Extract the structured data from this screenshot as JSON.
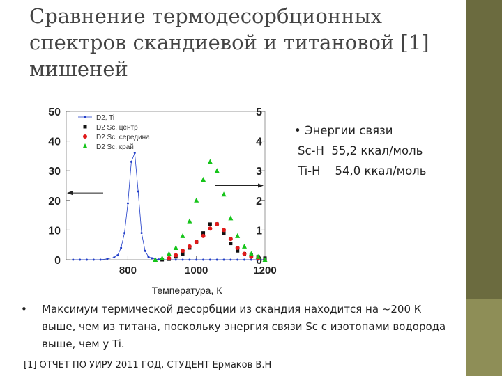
{
  "slide": {
    "title_lines": [
      "Сравнение термодесорбционных",
      "спектров скандиевой и титановой [1]",
      "мишеней"
    ],
    "energy": {
      "heading": "Энергии связи",
      "rows": [
        "Sc-H  55,2 ккал/моль",
        "Ti-H    54,0 ккал/моль"
      ]
    },
    "bullet_text": "Максимум термической десорбции из скандия находится на ~200 К выше, чем из титана, поскольку энергия связи Sc с изотопами водорода выше, чем у Ti.",
    "footnote": "[1] ОТЧЕТ ПО УИРУ 2011 ГОД, СТУДЕНТ Ермаков В.Н",
    "colors": {
      "sidebar_dark": "#6b6b3f",
      "sidebar_light": "#8e8e57"
    }
  },
  "chart_data": {
    "type": "scatter",
    "xlabel": "Температура, К",
    "x_ticks": [
      "800",
      "1000",
      "1200"
    ],
    "y_left_ticks": [
      "0",
      "10",
      "20",
      "30",
      "40",
      "50"
    ],
    "y_right_ticks": [
      "0",
      "1",
      "2",
      "3",
      "4",
      "5"
    ],
    "xlim": [
      620,
      1200
    ],
    "ylim_left": [
      0,
      50
    ],
    "ylim_right": [
      0,
      5
    ],
    "legend_position": "top-left",
    "series": [
      {
        "name": "D2, Ti",
        "axis": "left",
        "color": "#1f3cc8",
        "marker": "dot-line",
        "x": [
          640,
          660,
          680,
          700,
          720,
          740,
          760,
          770,
          780,
          790,
          800,
          810,
          820,
          830,
          840,
          850,
          860,
          870,
          880,
          890,
          900,
          920,
          940,
          960,
          980,
          1000,
          1020,
          1040,
          1060,
          1080,
          1100,
          1120,
          1140,
          1160,
          1180,
          1200
        ],
        "y": [
          0,
          0,
          0,
          0,
          0,
          0.3,
          0.8,
          1.5,
          4,
          9,
          19,
          33,
          36,
          23,
          9,
          3,
          1,
          0.5,
          0.2,
          0.1,
          0,
          0,
          0,
          0,
          0,
          0,
          0,
          0,
          0,
          0,
          0,
          0,
          0,
          0,
          0,
          0
        ]
      },
      {
        "name": "D2 Sc. центр",
        "axis": "right",
        "color": "#111111",
        "marker": "square",
        "x": [
          900,
          920,
          940,
          960,
          980,
          1000,
          1020,
          1040,
          1060,
          1080,
          1100,
          1120,
          1140,
          1160,
          1180,
          1200
        ],
        "y": [
          0,
          0.02,
          0.1,
          0.2,
          0.4,
          0.6,
          0.9,
          1.2,
          1.2,
          0.9,
          0.55,
          0.3,
          0.2,
          0.15,
          0.1,
          0.05
        ]
      },
      {
        "name": "D2 Sc. середина",
        "axis": "right",
        "color": "#e01a1a",
        "marker": "circle",
        "x": [
          920,
          940,
          960,
          980,
          1000,
          1020,
          1040,
          1060,
          1080,
          1100,
          1120,
          1140,
          1160,
          1180
        ],
        "y": [
          0.05,
          0.15,
          0.3,
          0.45,
          0.6,
          0.8,
          1.05,
          1.2,
          1.0,
          0.7,
          0.4,
          0.2,
          0.1,
          0.05
        ]
      },
      {
        "name": "D2 Sc. край",
        "axis": "right",
        "color": "#16c41a",
        "marker": "triangle",
        "x": [
          880,
          900,
          920,
          940,
          960,
          980,
          1000,
          1020,
          1040,
          1060,
          1080,
          1100,
          1120,
          1140,
          1160,
          1180,
          1200
        ],
        "y": [
          0,
          0.05,
          0.2,
          0.4,
          0.8,
          1.3,
          2.0,
          2.7,
          3.3,
          3.0,
          2.2,
          1.4,
          0.8,
          0.45,
          0.2,
          0.1,
          0
        ]
      }
    ],
    "annotations": [
      {
        "type": "arrow",
        "direction": "left",
        "axis": "left"
      },
      {
        "type": "arrow",
        "direction": "right",
        "axis": "right"
      }
    ]
  }
}
